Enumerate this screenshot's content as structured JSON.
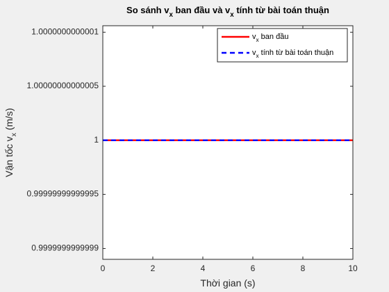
{
  "chart_data": {
    "type": "line",
    "title": "So sánh v_x ban đầu và v_x tính từ bài toán thuận",
    "xlabel": "Thời gian (s)",
    "ylabel": "Vận tốc v_x  (m/s)",
    "x": [
      0,
      10
    ],
    "series": [
      {
        "name": "v_x ban đầu",
        "color": "#ff0000",
        "dash": false,
        "values": [
          1,
          1
        ]
      },
      {
        "name": "v_x tính từ bài toán thuận",
        "color": "#0000ff",
        "dash": true,
        "values": [
          1,
          1
        ]
      }
    ],
    "xlim": [
      0,
      10
    ],
    "xticks": [
      0,
      2,
      4,
      6,
      8,
      10
    ],
    "ylim": [
      0.99999999999989,
      1.000000000000106
    ],
    "yticks": [
      0.9999999999999,
      0.99999999999995,
      1,
      1.00000000000005,
      1.0000000000001
    ],
    "grid": false,
    "legend": "upper right"
  }
}
